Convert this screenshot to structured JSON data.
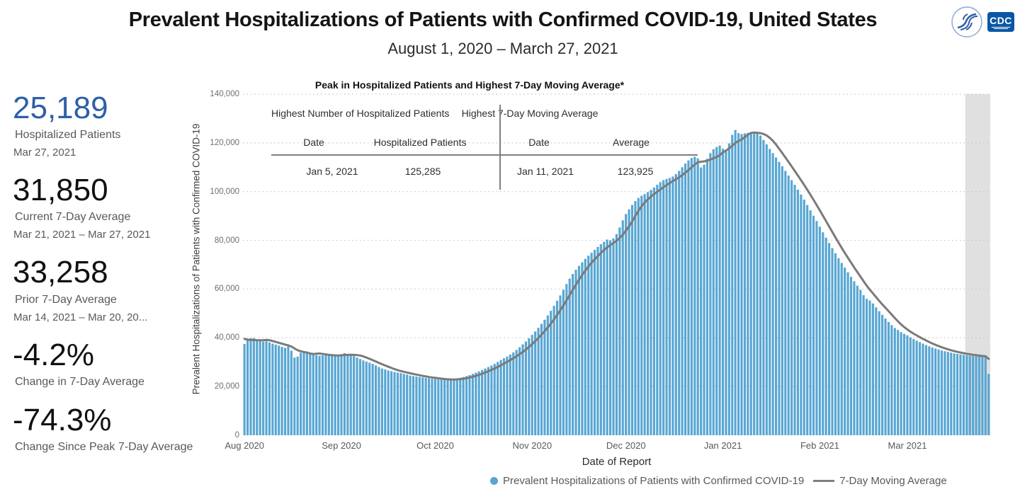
{
  "header": {
    "title": "Prevalent Hospitalizations of Patients with Confirmed COVID-19, United States",
    "subtitle": "August 1, 2020 – March 27, 2021",
    "cdc_logo_text": "CDC"
  },
  "stats": [
    {
      "value": "25,189",
      "label": "Hospitalized Patients",
      "sublabel": "Mar 27, 2021",
      "value_color": "#2e5fa8"
    },
    {
      "value": "31,850",
      "label": "Current 7-Day Average",
      "sublabel": "Mar 21, 2021 – Mar 27, 2021"
    },
    {
      "value": "33,258",
      "label": "Prior 7-Day Average",
      "sublabel": "Mar 14, 2021 – Mar 20, 20..."
    },
    {
      "value": "-4.2%",
      "label": "Change in 7-Day Average",
      "sublabel": ""
    },
    {
      "value": "-74.3%",
      "label": "Change Since Peak 7-Day Average",
      "sublabel": ""
    }
  ],
  "overlay_table": {
    "title": "Peak in Hospitalized Patients and Highest 7-Day Moving Average*",
    "left_header": "Highest Number of Hospitalized Patients",
    "right_header": "Highest 7-Day Moving Average",
    "left_col1": "Date",
    "left_col2": "Hospitalized Patients",
    "right_col1": "Date",
    "right_col2": "Average",
    "left_date": "Jan 5, 2021",
    "left_value": "125,285",
    "right_date": "Jan 11, 2021",
    "right_value": "123,925"
  },
  "chart_data": {
    "type": "bar",
    "title": "Peak in Hospitalized Patients and Highest 7-Day Moving Average*",
    "xlabel": "Date of Report",
    "ylabel": "Prevalent Hospitalizations of Patients with Confirmed COVID-19",
    "x_start": "Aug 1, 2020",
    "x_end": "Mar 27, 2021",
    "ylim": [
      0,
      140000
    ],
    "grid": "dotted-horizontal",
    "legend_position": "bottom",
    "yticks": [
      {
        "value": 0,
        "label": "0"
      },
      {
        "value": 20000,
        "label": "20,000"
      },
      {
        "value": 40000,
        "label": "40,000"
      },
      {
        "value": 60000,
        "label": "60,000"
      },
      {
        "value": 80000,
        "label": "80,000"
      },
      {
        "value": 100000,
        "label": "100,000"
      },
      {
        "value": 120000,
        "label": "120,000"
      },
      {
        "value": 140000,
        "label": "140,000"
      }
    ],
    "months": [
      {
        "label": "Aug 2020",
        "day_index": 0
      },
      {
        "label": "Sep 2020",
        "day_index": 31
      },
      {
        "label": "Oct 2020",
        "day_index": 61
      },
      {
        "label": "Nov 2020",
        "day_index": 92
      },
      {
        "label": "Dec 2020",
        "day_index": 122
      },
      {
        "label": "Jan 2021",
        "day_index": 153
      },
      {
        "label": "Feb 2021",
        "day_index": 184
      },
      {
        "label": "Mar 2021",
        "day_index": 212
      }
    ],
    "legend": [
      {
        "label": "Prevalent Hospitalizations of Patients with Confirmed COVID-19",
        "marker": "dot",
        "color": "#58a6d3"
      },
      {
        "label": "7-Day Moving Average",
        "marker": "line",
        "color": "#7f7f7f"
      }
    ],
    "colors": {
      "bar": "#58a6d3",
      "moving_average_line": "#7a7a7a",
      "highlight_band": "#e0e0e0",
      "gridline": "#c6c6c6",
      "stat_accent_blue": "#2e5fa8"
    },
    "highlight_band": {
      "start_day_index": 231,
      "note": "last 7 days shaded"
    },
    "moving_average_seed": [
      41000,
      40600,
      40200,
      39800,
      39200,
      38400
    ],
    "peak_hospitalized": {
      "date": "Jan 5, 2021",
      "value": 125285
    },
    "peak_moving_average": {
      "date": "Jan 11, 2021",
      "value": 123925
    },
    "values": [
      37500,
      38900,
      39800,
      39900,
      39400,
      38900,
      38400,
      38600,
      38100,
      37600,
      37200,
      36800,
      36300,
      35900,
      36400,
      34700,
      31900,
      32300,
      33900,
      34300,
      34100,
      33700,
      33300,
      32900,
      32600,
      32800,
      33000,
      32700,
      32900,
      32600,
      32400,
      33300,
      33700,
      33400,
      33000,
      32600,
      31900,
      31300,
      30700,
      30200,
      29800,
      29300,
      28700,
      28000,
      27400,
      27000,
      26600,
      26300,
      26000,
      25700,
      25500,
      25200,
      24900,
      24500,
      24300,
      24100,
      23900,
      23700,
      23500,
      23400,
      23200,
      23100,
      22900,
      22800,
      22700,
      22800,
      22900,
      23100,
      23400,
      23600,
      23900,
      24300,
      24700,
      25200,
      25700,
      26200,
      26800,
      27400,
      28000,
      28600,
      29300,
      30100,
      30900,
      31600,
      32300,
      33100,
      34000,
      35000,
      36100,
      37300,
      38500,
      39800,
      41200,
      42600,
      44100,
      45700,
      47400,
      49200,
      51100,
      53100,
      55200,
      57400,
      59700,
      62100,
      64300,
      66200,
      67900,
      69500,
      71000,
      72400,
      73700,
      74900,
      76100,
      77300,
      78400,
      79400,
      80300,
      80000,
      80800,
      82600,
      85300,
      88200,
      90800,
      92700,
      94500,
      96100,
      97400,
      98300,
      99000,
      99800,
      100700,
      101700,
      102800,
      103900,
      104700,
      105200,
      105600,
      106200,
      107200,
      108500,
      110000,
      111500,
      112800,
      113800,
      114300,
      113600,
      109900,
      111000,
      113500,
      115800,
      117400,
      118300,
      118900,
      117600,
      116500,
      119800,
      123300,
      125285,
      124000,
      123600,
      123900,
      124100,
      124400,
      124600,
      124300,
      123000,
      121200,
      119400,
      117500,
      115800,
      114000,
      112200,
      110400,
      108500,
      106600,
      104700,
      102800,
      100800,
      98800,
      96700,
      94500,
      92300,
      90100,
      87900,
      85600,
      83300,
      81100,
      78900,
      76800,
      74700,
      72700,
      70700,
      68800,
      66900,
      65000,
      63200,
      61400,
      59700,
      57500,
      56000,
      55300,
      54100,
      52500,
      50900,
      49400,
      47900,
      46500,
      45200,
      44000,
      43200,
      42300,
      41600,
      41000,
      40200,
      39500,
      38800,
      38200,
      37600,
      37000,
      36500,
      36000,
      35600,
      35200,
      34800,
      34500,
      34200,
      33900,
      33600,
      33400,
      33200,
      33000,
      32800,
      32600,
      32500,
      32400,
      32300,
      32200,
      32100,
      25189
    ]
  }
}
